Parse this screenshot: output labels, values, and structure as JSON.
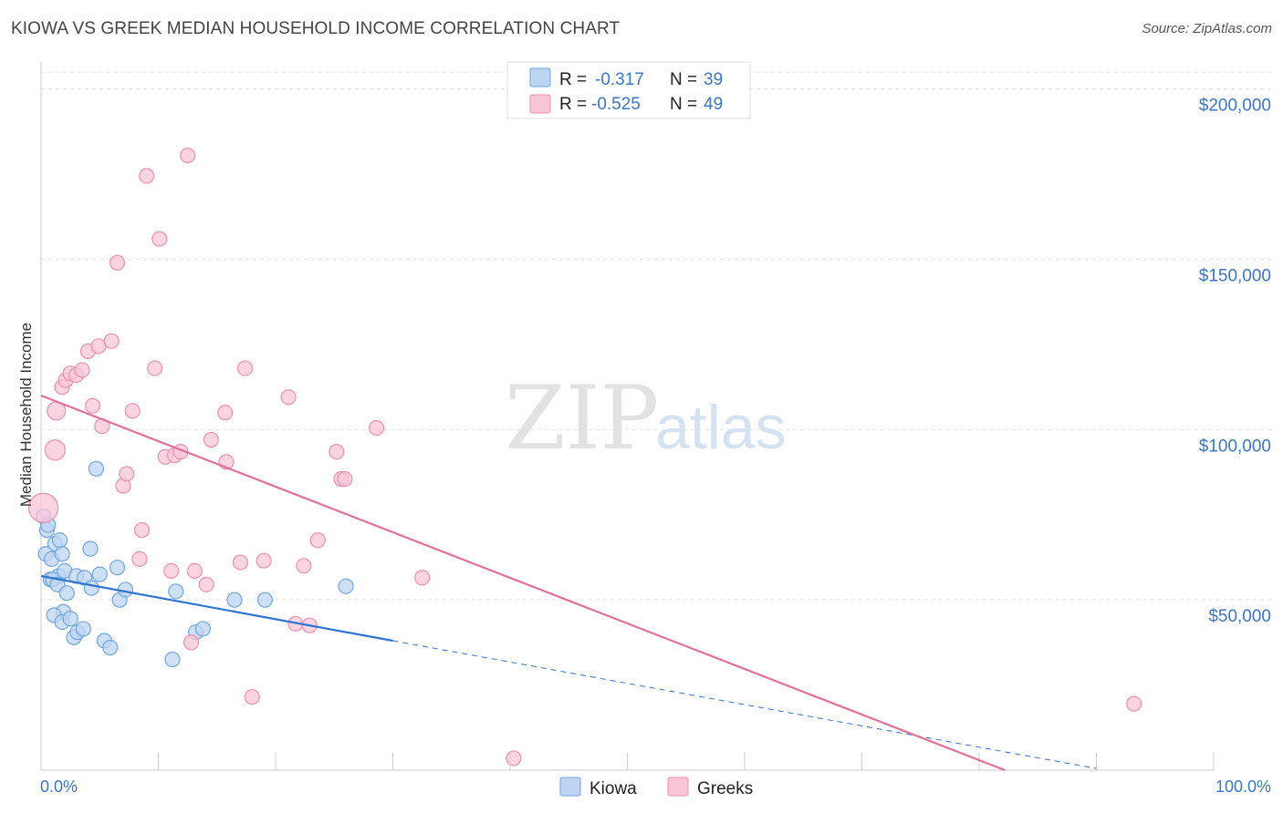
{
  "chart_data": {
    "type": "scatter",
    "title": "KIOWA VS GREEK MEDIAN HOUSEHOLD INCOME CORRELATION CHART",
    "source": "Source: ZipAtlas.com",
    "ylabel": "Median Household Income",
    "xlim": [
      0,
      100
    ],
    "ylim": [
      0,
      205000
    ],
    "x_tick_labels": [
      "0.0%",
      "100.0%"
    ],
    "y_ticks": [
      {
        "value": 200000,
        "label": "$200,000"
      },
      {
        "value": 150000,
        "label": "$150,000"
      },
      {
        "value": 100000,
        "label": "$100,000"
      },
      {
        "value": 50000,
        "label": "$50,000"
      }
    ],
    "watermark": {
      "zip": "ZIP",
      "atlas": "atlas"
    },
    "legend": {
      "r_label": "R =",
      "n_label": "N =",
      "entries": [
        {
          "name": "Kiowa",
          "r": "-0.317",
          "n": "39"
        },
        {
          "name": "Greeks",
          "r": "-0.525",
          "n": "49"
        }
      ]
    },
    "series": [
      {
        "name": "Kiowa",
        "color": "#6fa5e0",
        "fill": "#bdd5f3",
        "trend_color": "#2f74d0",
        "trend": {
          "x0": 0,
          "y0": 57000,
          "x1": 30,
          "y1": 38000,
          "dash_to_x": 90,
          "dash_to_y": 500
        },
        "points": [
          [
            0.2,
            74500
          ],
          [
            0.5,
            70500
          ],
          [
            0.6,
            72000
          ],
          [
            0.4,
            63500
          ],
          [
            0.9,
            62000
          ],
          [
            1.2,
            66500
          ],
          [
            1.6,
            67500
          ],
          [
            1.8,
            63500
          ],
          [
            1.5,
            57000
          ],
          [
            0.8,
            56000
          ],
          [
            1.0,
            56000
          ],
          [
            1.4,
            54500
          ],
          [
            2.0,
            58500
          ],
          [
            2.2,
            52000
          ],
          [
            1.9,
            46500
          ],
          [
            1.1,
            45500
          ],
          [
            1.8,
            43500
          ],
          [
            2.5,
            44500
          ],
          [
            2.8,
            39000
          ],
          [
            3.1,
            40500
          ],
          [
            3.6,
            41500
          ],
          [
            3.0,
            57000
          ],
          [
            3.7,
            56500
          ],
          [
            4.3,
            53500
          ],
          [
            5.0,
            57500
          ],
          [
            4.2,
            65000
          ],
          [
            4.7,
            88500
          ],
          [
            5.4,
            38000
          ],
          [
            5.9,
            36000
          ],
          [
            6.5,
            59500
          ],
          [
            6.7,
            50000
          ],
          [
            7.2,
            53000
          ],
          [
            11.2,
            32500
          ],
          [
            11.5,
            52500
          ],
          [
            13.2,
            40500
          ],
          [
            13.8,
            41500
          ],
          [
            16.5,
            50000
          ],
          [
            19.1,
            50000
          ],
          [
            26.0,
            54000
          ]
        ]
      },
      {
        "name": "Greeks",
        "color": "#ee8fb0",
        "fill": "#f9c6d7",
        "trend_color": "#e3709a",
        "trend": {
          "x0": 0,
          "y0": 110000,
          "x1": 82.2,
          "y1": 0
        },
        "points": [
          [
            0.2,
            77000
          ],
          [
            1.2,
            94000
          ],
          [
            1.3,
            105500
          ],
          [
            1.8,
            112500
          ],
          [
            2.1,
            114500
          ],
          [
            2.5,
            116500
          ],
          [
            3.0,
            116000
          ],
          [
            3.5,
            117500
          ],
          [
            4.0,
            123000
          ],
          [
            4.4,
            107000
          ],
          [
            4.9,
            124500
          ],
          [
            5.2,
            101000
          ],
          [
            6.0,
            126000
          ],
          [
            6.5,
            149000
          ],
          [
            7.0,
            83500
          ],
          [
            7.3,
            87000
          ],
          [
            7.8,
            105500
          ],
          [
            8.4,
            62000
          ],
          [
            8.6,
            70500
          ],
          [
            9.0,
            174500
          ],
          [
            9.7,
            118000
          ],
          [
            10.1,
            156000
          ],
          [
            10.6,
            92000
          ],
          [
            11.1,
            58500
          ],
          [
            11.4,
            92500
          ],
          [
            11.9,
            93500
          ],
          [
            12.5,
            180500
          ],
          [
            12.8,
            37500
          ],
          [
            13.1,
            58500
          ],
          [
            14.1,
            54500
          ],
          [
            14.5,
            97000
          ],
          [
            15.8,
            90500
          ],
          [
            15.7,
            105000
          ],
          [
            17.0,
            61000
          ],
          [
            17.4,
            118000
          ],
          [
            18.0,
            21500
          ],
          [
            19.0,
            61500
          ],
          [
            21.1,
            109500
          ],
          [
            21.7,
            43000
          ],
          [
            22.4,
            60000
          ],
          [
            22.9,
            42500
          ],
          [
            23.6,
            67500
          ],
          [
            25.2,
            93500
          ],
          [
            25.6,
            85500
          ],
          [
            25.9,
            85500
          ],
          [
            28.6,
            100500
          ],
          [
            32.5,
            56500
          ],
          [
            40.3,
            3500
          ],
          [
            93.2,
            19500
          ]
        ]
      }
    ]
  }
}
